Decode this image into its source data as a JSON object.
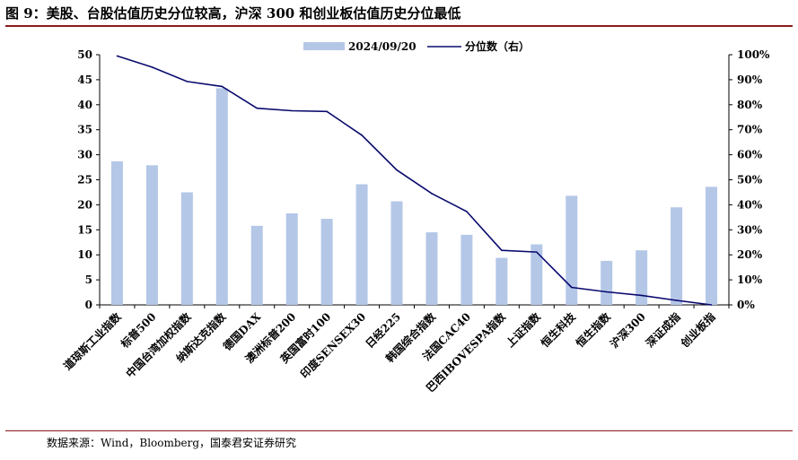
{
  "header": {
    "title": "图 9：美股、台股估值历史分位较高，沪深 300 和创业板估值历史分位最低"
  },
  "footer": {
    "source": "数据来源：Wind，Bloomberg，国泰君安证券研究"
  },
  "chart_data": {
    "type": "bar",
    "categories": [
      "道琼斯工业指数",
      "标普500",
      "中国台湾加权指数",
      "纳斯达克指数",
      "德国DAX",
      "澳洲标普200",
      "英国富时100",
      "印度SENSEX30",
      "日经225",
      "韩国综合指数",
      "法国CAC40",
      "巴西IBOVESPA指数",
      "上证指数",
      "恒生科技",
      "恒生指数",
      "沪深300",
      "深证成指",
      "创业板指"
    ],
    "series": [
      {
        "name": "2024/09/20",
        "type": "bar",
        "axis": "left",
        "color": "#b4c7e7",
        "values": [
          28.7,
          27.9,
          22.5,
          43.3,
          15.8,
          18.3,
          17.2,
          24.1,
          20.7,
          14.5,
          14.0,
          9.4,
          12.1,
          21.8,
          8.8,
          10.9,
          19.5,
          23.6
        ]
      },
      {
        "name": "分位数（右）",
        "type": "line",
        "axis": "right",
        "color": "#0a0a6e",
        "values": [
          0.995,
          0.95,
          0.893,
          0.873,
          0.786,
          0.776,
          0.773,
          0.678,
          0.539,
          0.445,
          0.373,
          0.218,
          0.211,
          0.07,
          0.052,
          0.038,
          0.018,
          0.0
        ]
      }
    ],
    "yleft": {
      "min": 0,
      "max": 50,
      "step": 5,
      "ticks": [
        "0",
        "5",
        "10",
        "15",
        "20",
        "25",
        "30",
        "35",
        "40",
        "45",
        "50"
      ]
    },
    "yright": {
      "min": 0,
      "max": 1,
      "step": 0.1,
      "ticks": [
        "0%",
        "10%",
        "20%",
        "30%",
        "40%",
        "50%",
        "60%",
        "70%",
        "80%",
        "90%",
        "100%"
      ]
    },
    "legend": {
      "placement": "top-center"
    },
    "grid": false
  }
}
